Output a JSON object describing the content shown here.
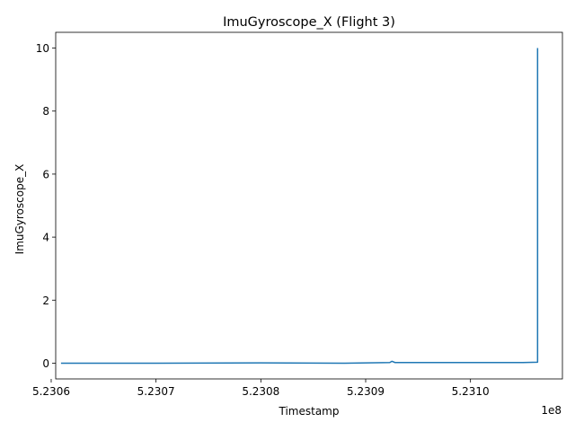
{
  "chart_data": {
    "type": "line",
    "title": "ImuGyroscope_X (Flight 3)",
    "xlabel": "Timestamp",
    "ylabel": "ImuGyroscope_X",
    "x_offset_label": "1e8",
    "xlim": [
      523060430,
      523108770
    ],
    "ylim": [
      -0.5,
      10.5
    ],
    "x_ticks": [
      523060000,
      523070000,
      523080000,
      523090000,
      523100000
    ],
    "x_tick_labels": [
      "5.2306",
      "5.2307",
      "5.2308",
      "5.2309",
      "5.2310"
    ],
    "y_ticks": [
      0,
      2,
      4,
      6,
      8,
      10
    ],
    "y_tick_labels": [
      "0",
      "2",
      "4",
      "6",
      "8",
      "10"
    ],
    "grid": false,
    "color": "#1f77b4",
    "series": [
      {
        "x": [
          523061000,
          523070000,
          523080000,
          523088000,
          523092300,
          523092500,
          523092800,
          523096000,
          523102500,
          523105000,
          523106400,
          523106400
        ],
        "values": [
          0.0,
          0.0,
          0.01,
          0.0,
          0.02,
          0.06,
          0.02,
          0.02,
          0.02,
          0.02,
          0.03,
          9.98
        ]
      }
    ]
  }
}
